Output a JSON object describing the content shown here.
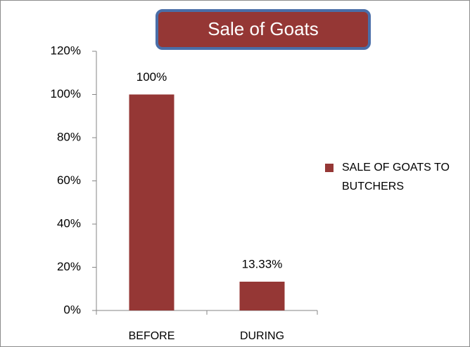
{
  "chart_data": {
    "type": "bar",
    "title": "Sale of Goats",
    "categories": [
      "BEFORE",
      "DURING"
    ],
    "series": [
      {
        "name": "SALE OF GOATS TO BUTCHERS",
        "color": "#953735",
        "values": [
          100,
          13.33
        ],
        "value_labels": [
          "100%",
          "13.33%"
        ]
      }
    ],
    "ylim": [
      0,
      120
    ],
    "yticks": [
      {
        "value": 0,
        "label": "0%"
      },
      {
        "value": 20,
        "label": "20%"
      },
      {
        "value": 40,
        "label": "40%"
      },
      {
        "value": 60,
        "label": "60%"
      },
      {
        "value": 80,
        "label": "80%"
      },
      {
        "value": 100,
        "label": "100%"
      },
      {
        "value": 120,
        "label": "120%"
      }
    ],
    "grid": false,
    "legend": "right"
  }
}
